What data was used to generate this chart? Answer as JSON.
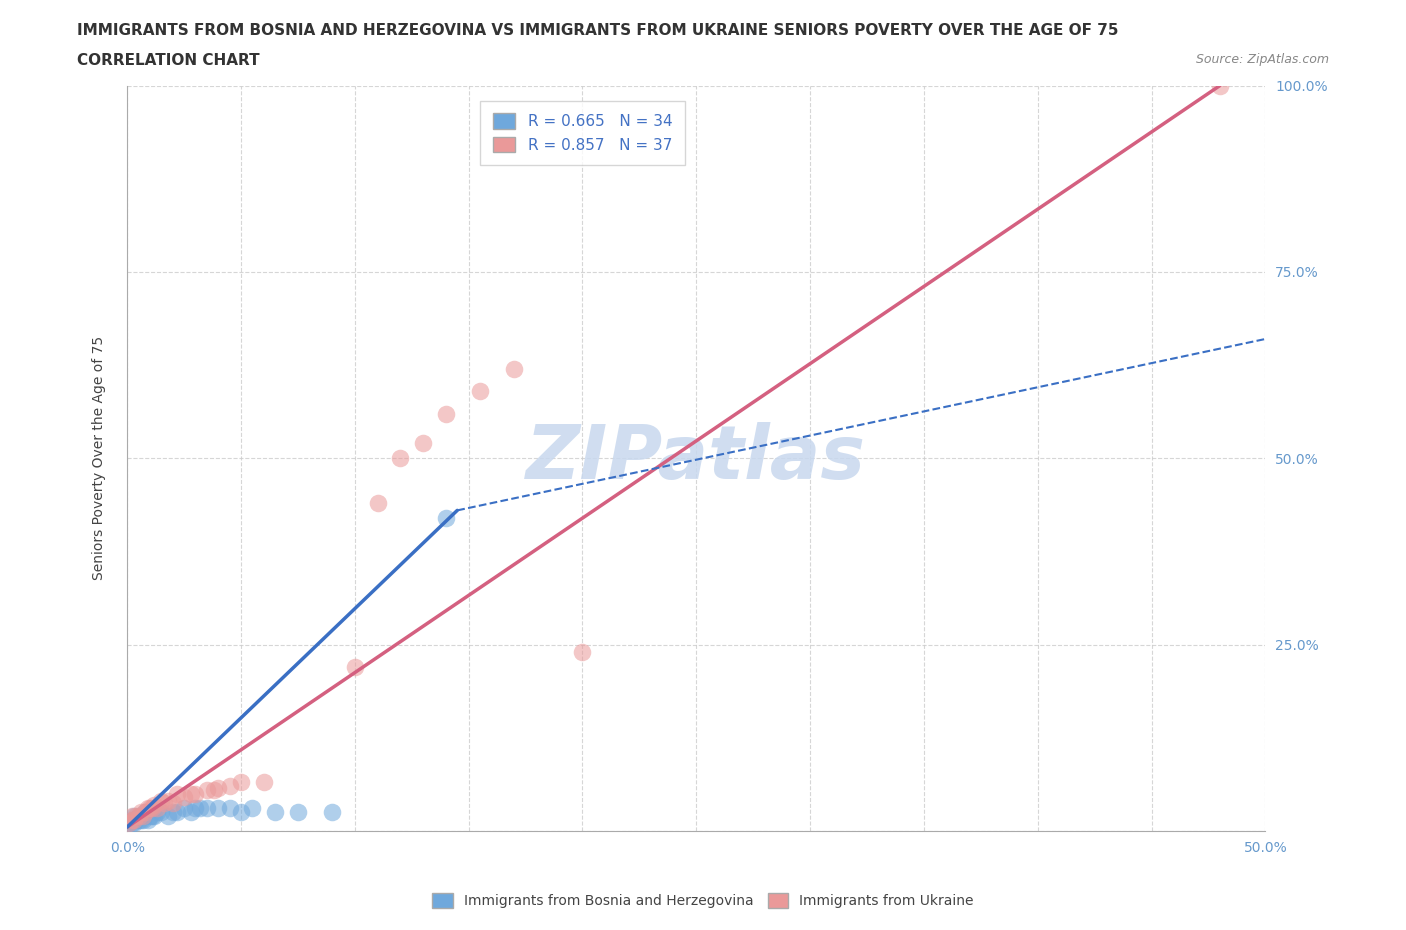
{
  "title": "IMMIGRANTS FROM BOSNIA AND HERZEGOVINA VS IMMIGRANTS FROM UKRAINE SENIORS POVERTY OVER THE AGE OF 75",
  "subtitle": "CORRELATION CHART",
  "source": "Source: ZipAtlas.com",
  "ylabel": "Seniors Poverty Over the Age of 75",
  "xlim": [
    0.0,
    0.5
  ],
  "ylim": [
    0.0,
    1.0
  ],
  "bosnia_color": "#6fa8dc",
  "ukraine_color": "#ea9999",
  "bosnia_R": 0.665,
  "bosnia_N": 34,
  "ukraine_R": 0.857,
  "ukraine_N": 37,
  "watermark": "ZIPatlas",
  "watermark_color": "#c8d8ee",
  "grid_color": "#cccccc",
  "bosnia_scatter": [
    [
      0.001,
      0.01
    ],
    [
      0.002,
      0.015
    ],
    [
      0.002,
      0.01
    ],
    [
      0.003,
      0.01
    ],
    [
      0.003,
      0.02
    ],
    [
      0.004,
      0.015
    ],
    [
      0.005,
      0.015
    ],
    [
      0.005,
      0.02
    ],
    [
      0.006,
      0.015
    ],
    [
      0.007,
      0.02
    ],
    [
      0.007,
      0.015
    ],
    [
      0.008,
      0.025
    ],
    [
      0.009,
      0.015
    ],
    [
      0.01,
      0.02
    ],
    [
      0.011,
      0.02
    ],
    [
      0.012,
      0.02
    ],
    [
      0.013,
      0.025
    ],
    [
      0.015,
      0.025
    ],
    [
      0.018,
      0.02
    ],
    [
      0.02,
      0.025
    ],
    [
      0.022,
      0.025
    ],
    [
      0.025,
      0.03
    ],
    [
      0.028,
      0.025
    ],
    [
      0.03,
      0.03
    ],
    [
      0.032,
      0.03
    ],
    [
      0.035,
      0.03
    ],
    [
      0.04,
      0.03
    ],
    [
      0.045,
      0.03
    ],
    [
      0.05,
      0.025
    ],
    [
      0.055,
      0.03
    ],
    [
      0.065,
      0.025
    ],
    [
      0.075,
      0.025
    ],
    [
      0.09,
      0.025
    ],
    [
      0.14,
      0.42
    ]
  ],
  "ukraine_scatter": [
    [
      0.001,
      0.01
    ],
    [
      0.002,
      0.015
    ],
    [
      0.002,
      0.02
    ],
    [
      0.003,
      0.015
    ],
    [
      0.004,
      0.02
    ],
    [
      0.005,
      0.02
    ],
    [
      0.006,
      0.025
    ],
    [
      0.007,
      0.02
    ],
    [
      0.008,
      0.025
    ],
    [
      0.009,
      0.03
    ],
    [
      0.01,
      0.03
    ],
    [
      0.011,
      0.03
    ],
    [
      0.012,
      0.035
    ],
    [
      0.013,
      0.03
    ],
    [
      0.015,
      0.04
    ],
    [
      0.016,
      0.038
    ],
    [
      0.018,
      0.04
    ],
    [
      0.02,
      0.038
    ],
    [
      0.022,
      0.05
    ],
    [
      0.025,
      0.045
    ],
    [
      0.028,
      0.05
    ],
    [
      0.03,
      0.05
    ],
    [
      0.035,
      0.055
    ],
    [
      0.038,
      0.055
    ],
    [
      0.04,
      0.058
    ],
    [
      0.045,
      0.06
    ],
    [
      0.05,
      0.065
    ],
    [
      0.06,
      0.065
    ],
    [
      0.1,
      0.22
    ],
    [
      0.11,
      0.44
    ],
    [
      0.12,
      0.5
    ],
    [
      0.13,
      0.52
    ],
    [
      0.14,
      0.56
    ],
    [
      0.155,
      0.59
    ],
    [
      0.17,
      0.62
    ],
    [
      0.2,
      0.24
    ],
    [
      0.48,
      1.0
    ]
  ],
  "ukraine_line_x": [
    0.0,
    0.48
  ],
  "ukraine_line_y": [
    0.005,
    1.0
  ],
  "bosnia_solid_line_x": [
    0.0,
    0.145
  ],
  "bosnia_solid_line_y": [
    0.005,
    0.43
  ],
  "bosnia_dashed_line_x": [
    0.145,
    0.5
  ],
  "bosnia_dashed_line_y": [
    0.43,
    0.66
  ],
  "tick_fontsize": 10,
  "legend_fontsize": 11,
  "axis_label_fontsize": 10,
  "title_fontsize": 11,
  "subtitle_fontsize": 11,
  "right_tick_color": "#6699cc"
}
